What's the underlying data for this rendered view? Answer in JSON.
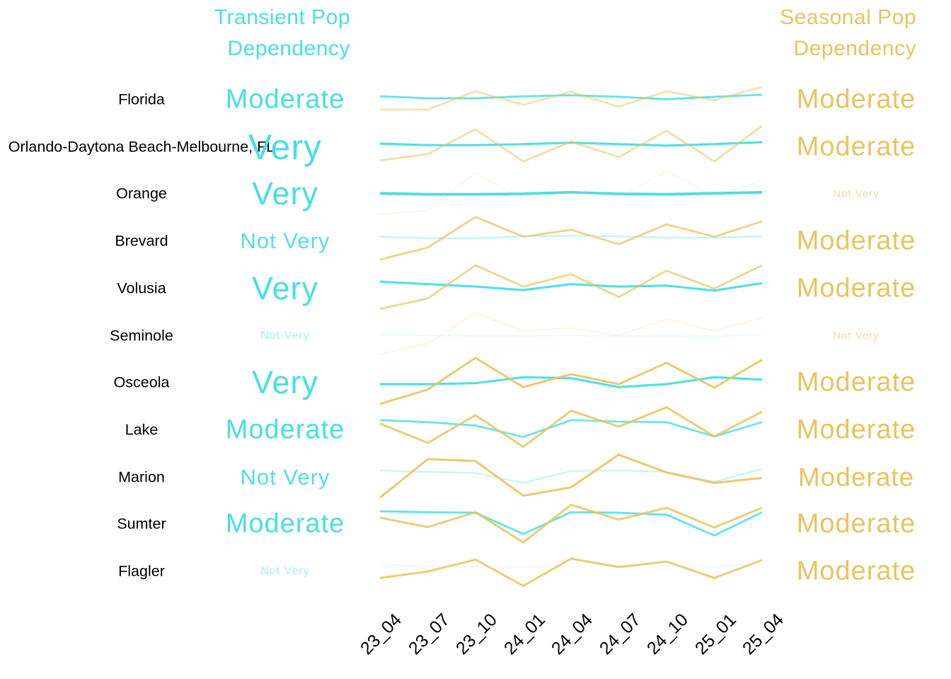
{
  "headers": {
    "transient": {
      "line1": "Transient Pop",
      "line2": "Dependency",
      "color": "#48DFE2"
    },
    "seasonal": {
      "line1": "Seasonal Pop",
      "line2": "Dependency",
      "color": "#E9C35E"
    }
  },
  "chart_data": {
    "type": "line",
    "x_ticks": [
      "23_04",
      "23_07",
      "23_10",
      "24_01",
      "24_04",
      "24_07",
      "24_10",
      "25_01",
      "25_04"
    ],
    "value_scale": "normalized 0-1 within each row sparkline band (no y-axis shown)",
    "series_colors": {
      "transient": "#48DFE2",
      "seasonal": "#E9C35E"
    },
    "legend": "line emphasis and label size encode dependency strength: Very > Moderate > Not Very",
    "rows": [
      {
        "name": "Florida",
        "transient": {
          "label": "Moderate",
          "label_size": 38,
          "label_opacity": 1,
          "line_opacity": 0.85,
          "line_width": 2.8,
          "values": [
            0.57,
            0.53,
            0.53,
            0.57,
            0.59,
            0.56,
            0.51,
            0.56,
            0.6
          ]
        },
        "seasonal": {
          "label": "Moderate",
          "label_size": 38,
          "label_opacity": 1,
          "line_opacity": 0.5,
          "line_width": 2.8,
          "values": [
            0.3,
            0.3,
            0.67,
            0.4,
            0.66,
            0.36,
            0.67,
            0.49,
            0.76
          ]
        }
      },
      {
        "name": "Orlando-Daytona Beach-Melbourne, FL",
        "transient": {
          "label": "Very",
          "label_size": 50,
          "label_opacity": 1,
          "line_opacity": 0.95,
          "line_width": 3.2,
          "values": [
            0.57,
            0.54,
            0.54,
            0.56,
            0.59,
            0.56,
            0.53,
            0.56,
            0.6
          ]
        },
        "seasonal": {
          "label": "Moderate",
          "label_size": 38,
          "label_opacity": 1,
          "line_opacity": 0.55,
          "line_width": 2.8,
          "values": [
            0.23,
            0.36,
            0.86,
            0.21,
            0.61,
            0.3,
            0.83,
            0.21,
            0.93
          ]
        }
      },
      {
        "name": "Orange",
        "transient": {
          "label": "Very",
          "label_size": 45,
          "label_opacity": 1,
          "line_opacity": 1,
          "line_width": 3.8,
          "values": [
            0.51,
            0.49,
            0.49,
            0.5,
            0.53,
            0.5,
            0.49,
            0.51,
            0.53
          ]
        },
        "seasonal": {
          "label": "Not Very",
          "label_size": 15,
          "label_opacity": 0.6,
          "line_opacity": 0.14,
          "line_width": 2.2,
          "values": [
            0.09,
            0.16,
            0.93,
            0.37,
            0.56,
            0.44,
            0.96,
            0.44,
            0.77
          ]
        }
      },
      {
        "name": "Brevard",
        "transient": {
          "label": "Not Very",
          "label_size": 31,
          "label_opacity": 0.95,
          "line_opacity": 0.32,
          "line_width": 2.4,
          "values": [
            0.59,
            0.56,
            0.56,
            0.6,
            0.61,
            0.6,
            0.57,
            0.57,
            0.6
          ]
        },
        "seasonal": {
          "label": "Moderate",
          "label_size": 38,
          "label_opacity": 1,
          "line_opacity": 0.75,
          "line_width": 2.8,
          "values": [
            0.13,
            0.37,
            0.99,
            0.59,
            0.73,
            0.44,
            0.84,
            0.59,
            0.9
          ]
        }
      },
      {
        "name": "Volusia",
        "transient": {
          "label": "Very",
          "label_size": 45,
          "label_opacity": 1,
          "line_opacity": 0.95,
          "line_width": 3.2,
          "values": [
            0.64,
            0.59,
            0.54,
            0.47,
            0.59,
            0.54,
            0.56,
            0.46,
            0.61
          ]
        },
        "seasonal": {
          "label": "Moderate",
          "label_size": 38,
          "label_opacity": 1,
          "line_opacity": 0.7,
          "line_width": 2.8,
          "values": [
            0.09,
            0.3,
            0.97,
            0.54,
            0.79,
            0.33,
            0.86,
            0.5,
            0.97
          ]
        }
      },
      {
        "name": "Seminole",
        "transient": {
          "label": "Not Very",
          "label_size": 16,
          "label_opacity": 0.5,
          "line_opacity": 0.12,
          "line_width": 2.2,
          "values": [
            0.53,
            0.51,
            0.5,
            0.5,
            0.51,
            0.5,
            0.5,
            0.49,
            0.53
          ]
        },
        "seasonal": {
          "label": "Not Very",
          "label_size": 15,
          "label_opacity": 0.6,
          "line_opacity": 0.16,
          "line_width": 2.2,
          "values": [
            0.13,
            0.34,
            0.96,
            0.6,
            0.66,
            0.51,
            0.84,
            0.6,
            0.87
          ]
        }
      },
      {
        "name": "Osceola",
        "transient": {
          "label": "Very",
          "label_size": 45,
          "label_opacity": 1,
          "line_opacity": 0.95,
          "line_width": 3.2,
          "values": [
            0.47,
            0.47,
            0.49,
            0.61,
            0.59,
            0.41,
            0.47,
            0.61,
            0.56
          ]
        },
        "seasonal": {
          "label": "Moderate",
          "label_size": 38,
          "label_opacity": 1,
          "line_opacity": 0.9,
          "line_width": 3,
          "values": [
            0.07,
            0.36,
            1.0,
            0.41,
            0.67,
            0.47,
            0.9,
            0.4,
            0.96
          ]
        }
      },
      {
        "name": "Lake",
        "transient": {
          "label": "Moderate",
          "label_size": 38,
          "label_opacity": 1,
          "line_opacity": 0.8,
          "line_width": 2.8,
          "values": [
            0.7,
            0.66,
            0.59,
            0.36,
            0.7,
            0.67,
            0.66,
            0.37,
            0.66
          ]
        },
        "seasonal": {
          "label": "Moderate",
          "label_size": 38,
          "label_opacity": 1,
          "line_opacity": 0.85,
          "line_width": 3,
          "values": [
            0.63,
            0.24,
            0.8,
            0.16,
            0.89,
            0.57,
            0.96,
            0.37,
            0.87
          ]
        }
      },
      {
        "name": "Marion",
        "transient": {
          "label": "Not Very",
          "label_size": 31,
          "label_opacity": 0.95,
          "line_opacity": 0.3,
          "line_width": 2.4,
          "values": [
            0.64,
            0.61,
            0.59,
            0.39,
            0.63,
            0.64,
            0.61,
            0.41,
            0.67
          ]
        },
        "seasonal": {
          "label": "Moderate",
          "label_size": 37,
          "label_opacity": 1,
          "line_opacity": 0.9,
          "line_width": 3,
          "values": [
            0.09,
            0.87,
            0.83,
            0.13,
            0.3,
            0.96,
            0.6,
            0.39,
            0.49
          ]
        }
      },
      {
        "name": "Sumter",
        "transient": {
          "label": "Moderate",
          "label_size": 38,
          "label_opacity": 1,
          "line_opacity": 0.85,
          "line_width": 2.8,
          "values": [
            0.76,
            0.74,
            0.73,
            0.3,
            0.74,
            0.73,
            0.69,
            0.27,
            0.74
          ]
        },
        "seasonal": {
          "label": "Moderate",
          "label_size": 38,
          "label_opacity": 1,
          "line_opacity": 0.85,
          "line_width": 3,
          "values": [
            0.63,
            0.44,
            0.74,
            0.13,
            0.89,
            0.59,
            0.83,
            0.43,
            0.83
          ]
        }
      },
      {
        "name": "Flagler",
        "transient": {
          "label": "Not Very",
          "label_size": 16,
          "label_opacity": 0.5,
          "line_opacity": 0.1,
          "line_width": 2.2,
          "values": [
            0.64,
            0.61,
            0.6,
            0.59,
            0.61,
            0.63,
            0.61,
            0.59,
            0.66
          ]
        },
        "seasonal": {
          "label": "Moderate",
          "label_size": 38,
          "label_opacity": 1,
          "line_opacity": 0.85,
          "line_width": 3,
          "values": [
            0.37,
            0.5,
            0.74,
            0.21,
            0.76,
            0.59,
            0.7,
            0.37,
            0.73
          ]
        }
      }
    ]
  },
  "layout_numbers": {
    "row_count": "11"
  }
}
